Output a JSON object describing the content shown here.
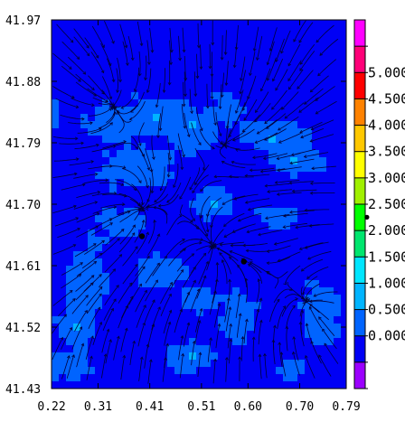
{
  "chart_data": {
    "type": "heatmap",
    "title": "",
    "xlabel": "",
    "ylabel": "",
    "x_ticks": [
      "0.22",
      "0.31",
      "0.41",
      "0.51",
      "0.60",
      "0.70",
      "0.79"
    ],
    "y_ticks": [
      "41.97",
      "41.88",
      "41.79",
      "41.70",
      "41.61",
      "41.52",
      "41.43"
    ],
    "xlim": [
      0.22,
      0.79
    ],
    "ylim": [
      41.43,
      41.97
    ],
    "overlay": "streamlines",
    "base_level": "0.000 to 0.500",
    "patch_level": "0.500 to 1.000",
    "highlight_level": "1.000 to 1.500",
    "markers": [
      {
        "x": 0.395,
        "y": 41.653
      },
      {
        "x": 0.592,
        "y": 41.616
      }
    ],
    "outside_marker": {
      "x": 0.83,
      "y": 41.681
    },
    "colorbar": {
      "levels": [
        {
          "label": "",
          "color": "#9b00ff"
        },
        {
          "label": "0.000",
          "color": "#0000f5"
        },
        {
          "label": "0.500",
          "color": "#0064ff"
        },
        {
          "label": "1.000",
          "color": "#00b4ff"
        },
        {
          "label": "1.500",
          "color": "#00e6ff"
        },
        {
          "label": "2.000",
          "color": "#00e66e"
        },
        {
          "label": "2.500",
          "color": "#00ff00"
        },
        {
          "label": "3.000",
          "color": "#a0f000"
        },
        {
          "label": "3.500",
          "color": "#ffff00"
        },
        {
          "label": "4.000",
          "color": "#ffc800"
        },
        {
          "label": "4.500",
          "color": "#ff8200"
        },
        {
          "label": "5.000",
          "color": "#ff0000"
        },
        {
          "label": "",
          "color": "#ff0078"
        },
        {
          "label": "",
          "color": "#ff00ff"
        }
      ]
    }
  }
}
